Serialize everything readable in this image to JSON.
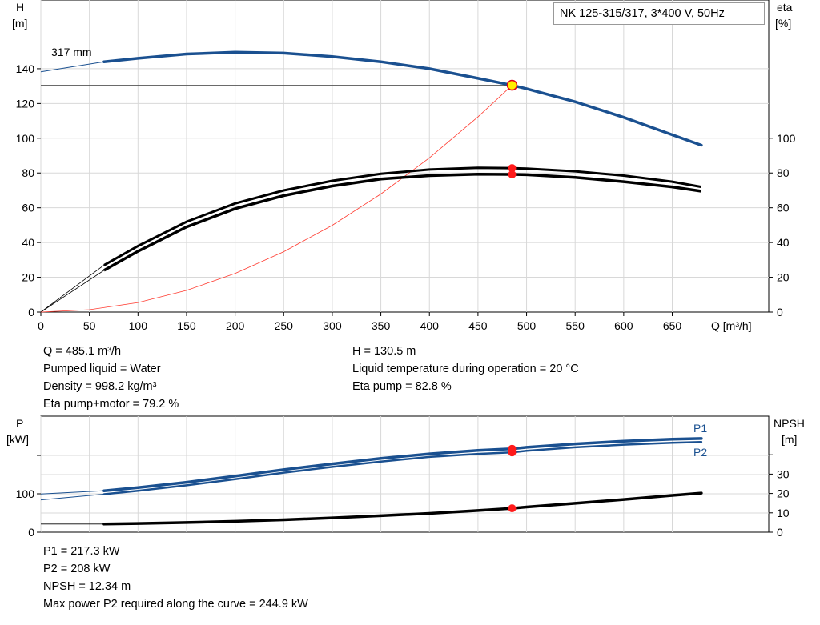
{
  "chart_data": [
    {
      "type": "line",
      "title": "NK 125-315/317, 3*400 V, 50Hz",
      "xlabel": "Q [m³/h]",
      "ylabel_left": [
        "H",
        "[m]"
      ],
      "ylabel_right": [
        "eta",
        "[%]"
      ],
      "xlim": [
        0,
        700
      ],
      "ylim_left": [
        0,
        150
      ],
      "ylim_right": [
        0,
        150
      ],
      "x_ticks": [
        0,
        50,
        100,
        150,
        200,
        250,
        300,
        350,
        400,
        450,
        500,
        550,
        600,
        650
      ],
      "y_ticks_left": [
        0,
        20,
        40,
        60,
        80,
        100,
        120,
        140
      ],
      "y_ticks_right": [
        0,
        20,
        40,
        60,
        80,
        100
      ],
      "grid": true,
      "curve_label": "317 mm",
      "series": [
        {
          "key": "H",
          "color": "#1a5090",
          "x": [
            65,
            100,
            150,
            200,
            250,
            300,
            350,
            400,
            450,
            485.1,
            500,
            550,
            600,
            650,
            680
          ],
          "values": [
            144,
            146,
            148.5,
            149.5,
            149,
            147,
            144,
            140,
            134.5,
            130.5,
            128.5,
            121,
            112,
            102,
            96
          ]
        },
        {
          "key": "eta_pump",
          "color": "#000000",
          "x": [
            65,
            100,
            150,
            200,
            250,
            300,
            350,
            400,
            450,
            485.1,
            500,
            550,
            600,
            650,
            680
          ],
          "values": [
            27,
            38,
            52,
            62.5,
            70,
            75.5,
            79.5,
            82,
            83,
            82.8,
            82.5,
            81,
            78.5,
            75,
            72
          ]
        },
        {
          "key": "eta_pump_motor",
          "color": "#000000",
          "x": [
            65,
            100,
            150,
            200,
            250,
            300,
            350,
            400,
            450,
            485.1,
            500,
            550,
            600,
            650,
            680
          ],
          "values": [
            24,
            35,
            49,
            59.5,
            67,
            72.5,
            76.5,
            78.5,
            79.3,
            79.2,
            79,
            77.5,
            75,
            72,
            69.5
          ]
        },
        {
          "key": "system_curve",
          "color": "#ff3b30",
          "x": [
            0,
            50,
            100,
            150,
            200,
            250,
            300,
            350,
            400,
            450,
            485.1
          ],
          "values": [
            0,
            1.4,
            5.5,
            12.5,
            22.2,
            34.7,
            49.9,
            67.9,
            88.7,
            112.3,
            130.5
          ]
        }
      ],
      "operating_point": {
        "Q": 485.1,
        "H": 130.5,
        "eta_pump": 82.8,
        "eta_pump_motor": 79.2
      }
    },
    {
      "type": "line",
      "ylabel_left": [
        "P",
        "[kW]"
      ],
      "ylabel_right": [
        "NPSH",
        "[m]"
      ],
      "xlim": [
        0,
        700
      ],
      "y_ticks_left": [
        0,
        100
      ],
      "y_ticks_right": [
        0,
        10,
        20,
        30
      ],
      "grid": true,
      "series": [
        {
          "name": "P1",
          "color": "#1a5090",
          "x": [
            65,
            100,
            150,
            200,
            250,
            300,
            350,
            400,
            450,
            485.1,
            500,
            550,
            600,
            650,
            680
          ],
          "values": [
            108,
            116,
            130,
            146,
            163,
            178,
            192,
            204,
            213,
            217.3,
            221,
            230,
            237,
            242,
            244
          ]
        },
        {
          "name": "P2",
          "color": "#1a5090",
          "x": [
            65,
            100,
            150,
            200,
            250,
            300,
            350,
            400,
            450,
            485.1,
            500,
            550,
            600,
            650,
            680
          ],
          "values": [
            99,
            108,
            122,
            138,
            155,
            170,
            184,
            196,
            204,
            208,
            212,
            221,
            228,
            233,
            235
          ]
        },
        {
          "key": "NPSH",
          "color": "#000000",
          "x": [
            65,
            100,
            150,
            200,
            250,
            300,
            350,
            400,
            450,
            485.1,
            500,
            550,
            600,
            650,
            680
          ],
          "values": [
            4.2,
            4.5,
            5.0,
            5.6,
            6.4,
            7.4,
            8.5,
            9.7,
            11.2,
            12.34,
            13.0,
            14.9,
            16.9,
            19.0,
            20.2
          ]
        }
      ]
    }
  ],
  "info": {
    "q": "Q = 485.1 m³/h",
    "liquid": "Pumped liquid = Water",
    "density": "Density = 998.2 kg/m³",
    "eta_pm": "Eta pump+motor = 79.2 %",
    "h": "H = 130.5 m",
    "temp": "Liquid temperature during operation = 20 °C",
    "eta_p": "Eta pump = 82.8 %",
    "p1": "P1 = 217.3 kW",
    "p2": "P2 = 208 kW",
    "npsh": "NPSH = 12.34 m",
    "maxp2": "Max power P2 required along the curve = 244.9 kW"
  }
}
